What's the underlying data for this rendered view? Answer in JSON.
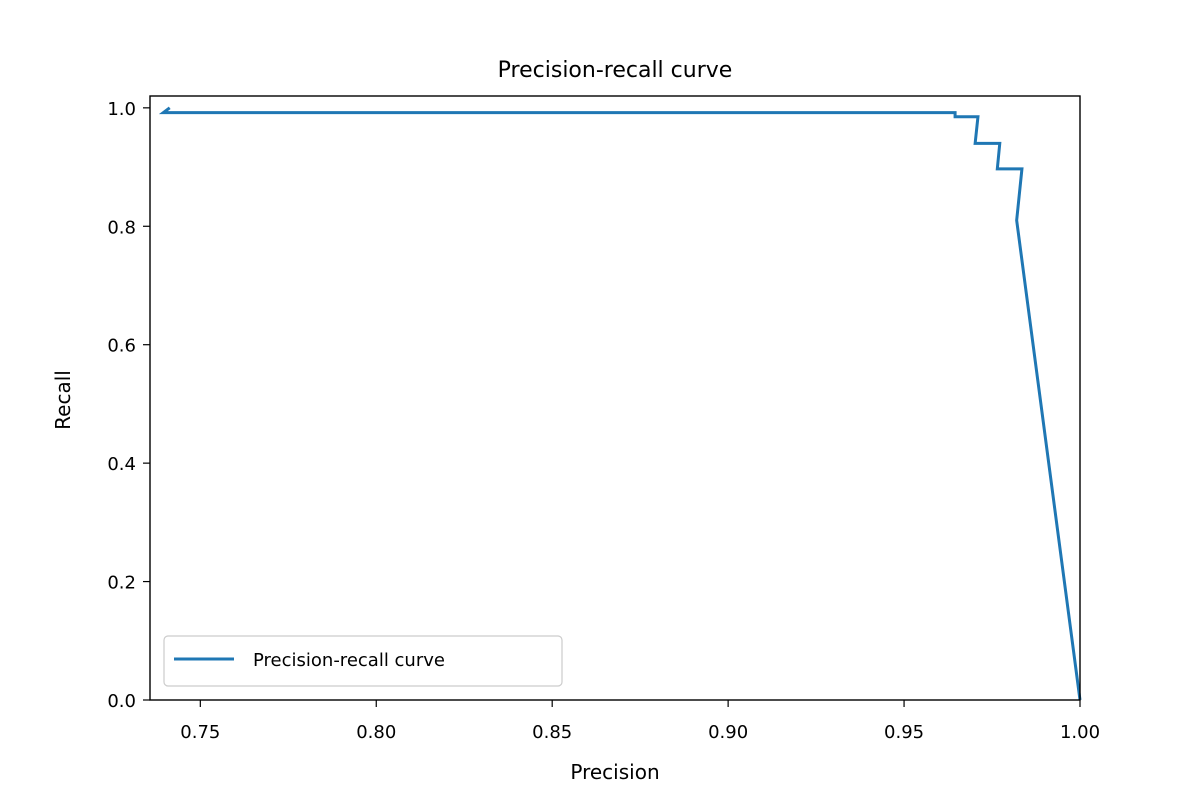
{
  "chart_data": {
    "type": "line",
    "title": "Precision-recall curve",
    "xlabel": "Precision",
    "ylabel": "Recall",
    "xlim": [
      0.7357,
      1.0
    ],
    "ylim": [
      0.0,
      1.02
    ],
    "grid": false,
    "legend": {
      "position": "lower-left"
    },
    "x_ticks": [
      "0.75",
      "0.80",
      "0.85",
      "0.90",
      "0.95",
      "1.00"
    ],
    "y_ticks": [
      "0.0",
      "0.2",
      "0.4",
      "0.6",
      "0.8",
      "1.0"
    ],
    "series": [
      {
        "name": "Precision-recall curve",
        "color": "#1f77b4",
        "points": [
          {
            "x": 0.7413,
            "y": 1.0
          },
          {
            "x": 0.7395,
            "y": 0.992
          },
          {
            "x": 0.9645,
            "y": 0.992
          },
          {
            "x": 0.9645,
            "y": 0.985
          },
          {
            "x": 0.971,
            "y": 0.985
          },
          {
            "x": 0.9702,
            "y": 0.94
          },
          {
            "x": 0.9772,
            "y": 0.94
          },
          {
            "x": 0.9765,
            "y": 0.897
          },
          {
            "x": 0.9835,
            "y": 0.897
          },
          {
            "x": 0.982,
            "y": 0.81
          },
          {
            "x": 1.0,
            "y": 0.0
          }
        ]
      }
    ]
  }
}
